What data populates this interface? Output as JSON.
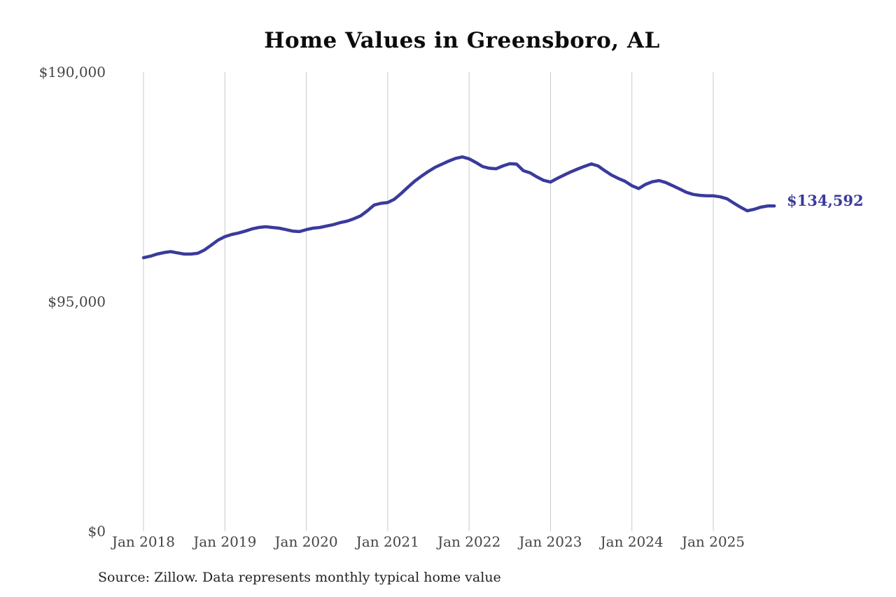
{
  "page": {
    "background_color": "#ffffff"
  },
  "chart": {
    "title": "Home Values in Greensboro, AL",
    "source_note": "Source: Zillow. Data represents monthly typical home value",
    "end_label": "$134,592",
    "line_color": "#3b3a9d",
    "grid_color": "#c9c9c9",
    "axis_text_color": "#444444"
  },
  "chart_data": {
    "type": "line",
    "title": "Home Values in Greensboro, AL",
    "xlabel": "",
    "ylabel": "",
    "ylim": [
      0,
      190000
    ],
    "y_ticks": [
      {
        "label": "$190,000",
        "value": 190000
      },
      {
        "label": "$95,000",
        "value": 95000
      },
      {
        "label": "$0",
        "value": 0
      }
    ],
    "x_tick_labels": [
      "Jan 2018",
      "Jan 2019",
      "Jan 2020",
      "Jan 2021",
      "Jan 2022",
      "Jan 2023",
      "Jan 2024",
      "Jan 2025"
    ],
    "grid": "vertical-only",
    "legend": "none",
    "unit": "USD",
    "annotation": {
      "text": "$134,592",
      "position": "line-end"
    },
    "x_months": [
      "2018-01",
      "2018-02",
      "2018-03",
      "2018-04",
      "2018-05",
      "2018-06",
      "2018-07",
      "2018-08",
      "2018-09",
      "2018-10",
      "2018-11",
      "2018-12",
      "2019-01",
      "2019-02",
      "2019-03",
      "2019-04",
      "2019-05",
      "2019-06",
      "2019-07",
      "2019-08",
      "2019-09",
      "2019-10",
      "2019-11",
      "2019-12",
      "2020-01",
      "2020-02",
      "2020-03",
      "2020-04",
      "2020-05",
      "2020-06",
      "2020-07",
      "2020-08",
      "2020-09",
      "2020-10",
      "2020-11",
      "2020-12",
      "2021-01",
      "2021-02",
      "2021-03",
      "2021-04",
      "2021-05",
      "2021-06",
      "2021-07",
      "2021-08",
      "2021-09",
      "2021-10",
      "2021-11",
      "2021-12",
      "2022-01",
      "2022-02",
      "2022-03",
      "2022-04",
      "2022-05",
      "2022-06",
      "2022-07",
      "2022-08",
      "2022-09",
      "2022-10",
      "2022-11",
      "2022-12",
      "2023-01",
      "2023-02",
      "2023-03",
      "2023-04",
      "2023-05",
      "2023-06",
      "2023-07",
      "2023-08",
      "2023-09",
      "2023-10",
      "2023-11",
      "2023-12",
      "2024-01",
      "2024-02",
      "2024-03",
      "2024-04",
      "2024-05",
      "2024-06",
      "2024-07",
      "2024-08",
      "2024-09",
      "2024-10",
      "2024-11",
      "2024-12",
      "2025-01",
      "2025-02",
      "2025-03",
      "2025-04",
      "2025-05",
      "2025-06",
      "2025-07",
      "2025-08",
      "2025-09",
      "2025-10"
    ],
    "series": [
      {
        "name": "typical-home-value",
        "values": [
          113200,
          113800,
          114700,
          115300,
          115700,
          115200,
          114700,
          114700,
          115000,
          116400,
          118400,
          120500,
          121900,
          122800,
          123400,
          124200,
          125100,
          125700,
          126000,
          125700,
          125400,
          124800,
          124200,
          124000,
          124800,
          125400,
          125700,
          126300,
          126900,
          127700,
          128300,
          129300,
          130500,
          132600,
          135000,
          135700,
          136000,
          137400,
          139800,
          142400,
          144900,
          147000,
          148900,
          150600,
          151900,
          153200,
          154300,
          154900,
          154100,
          152600,
          150900,
          150200,
          150000,
          151200,
          152100,
          151900,
          149200,
          148300,
          146600,
          145200,
          144500,
          146000,
          147400,
          148700,
          149900,
          151000,
          152000,
          151200,
          149200,
          147400,
          146000,
          144800,
          143000,
          141800,
          143500,
          144600,
          145100,
          144300,
          143000,
          141700,
          140300,
          139400,
          139000,
          138800,
          138800,
          138400,
          137600,
          135800,
          134100,
          132600,
          133200,
          134100,
          134600,
          134592
        ]
      }
    ]
  }
}
